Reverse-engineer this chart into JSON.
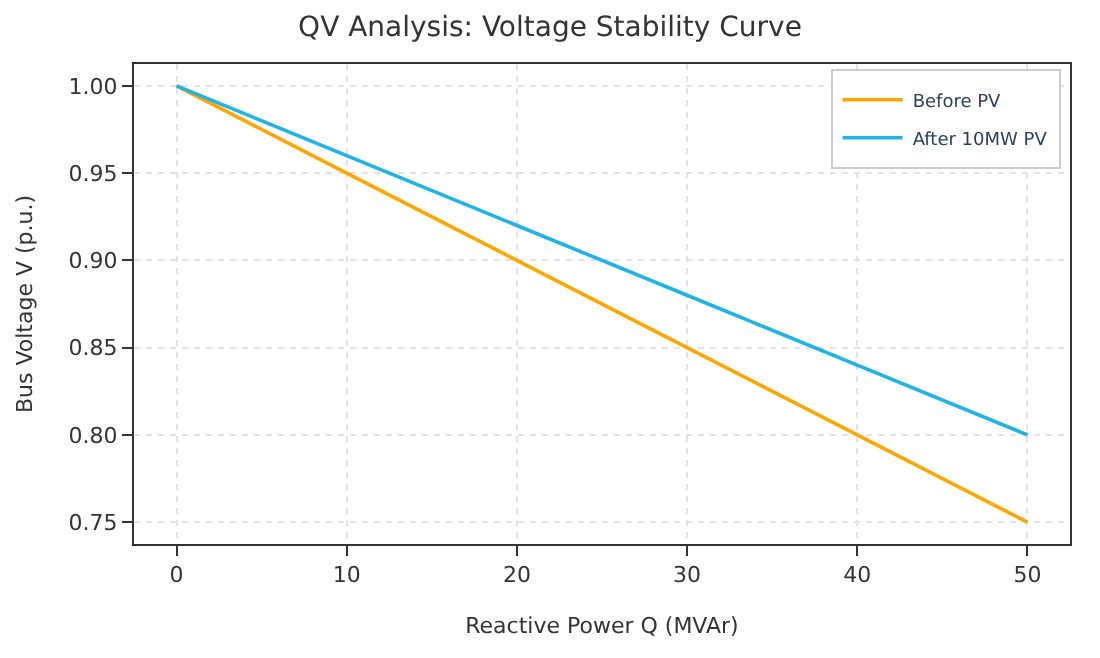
{
  "chart_data": {
    "type": "line",
    "title": "QV Analysis: Voltage Stability Curve",
    "xlabel": "Reactive Power Q (MVAr)",
    "ylabel": "Bus Voltage V (p.u.)",
    "x": [
      0,
      10,
      20,
      30,
      40,
      50
    ],
    "series": [
      {
        "name": "Before PV",
        "color": "#ffa500",
        "values": [
          1.0,
          0.95,
          0.9,
          0.85,
          0.8,
          0.75
        ]
      },
      {
        "name": "After 10MW PV",
        "color": "#1fb4e6",
        "values": [
          1.0,
          0.96,
          0.92,
          0.88,
          0.84,
          0.8
        ]
      }
    ],
    "xlim": [
      -2.5,
      52.5
    ],
    "xticks": [
      0,
      10,
      20,
      30,
      40,
      50
    ],
    "ylim": [
      0.7375,
      1.0125
    ],
    "yticks": [
      {
        "value": 0.75,
        "label": "0.75"
      },
      {
        "value": 0.8,
        "label": "0.80"
      },
      {
        "value": 0.85,
        "label": "0.85"
      },
      {
        "value": 0.9,
        "label": "0.90"
      },
      {
        "value": 0.95,
        "label": "0.95"
      },
      {
        "value": 1.0,
        "label": "1.00"
      }
    ],
    "grid": true,
    "legend": "top right",
    "marker": "none",
    "line_style": "solid"
  }
}
